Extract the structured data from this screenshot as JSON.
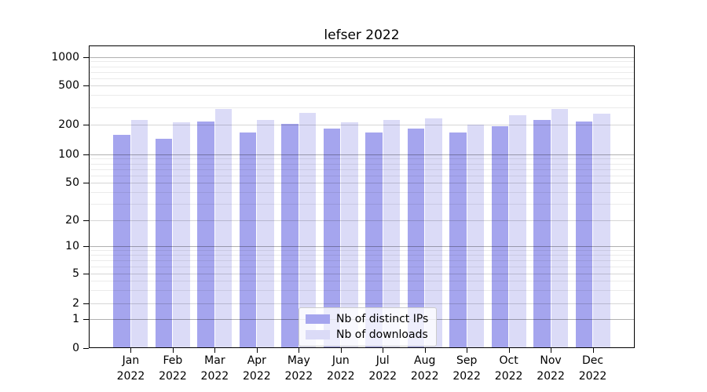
{
  "chart_data": {
    "type": "bar",
    "title": "lefser 2022",
    "months": [
      "Jan",
      "Feb",
      "Mar",
      "Apr",
      "May",
      "Jun",
      "Jul",
      "Aug",
      "Sep",
      "Oct",
      "Nov",
      "Dec"
    ],
    "year": "2022",
    "series": [
      {
        "name": "Nb of distinct IPs",
        "color": "#a5a5ee",
        "values": [
          158,
          143,
          216,
          167,
          204,
          183,
          168,
          183,
          167,
          194,
          223,
          215
        ]
      },
      {
        "name": "Nb of downloads",
        "color": "#dbdbf7",
        "values": [
          223,
          210,
          288,
          222,
          263,
          211,
          225,
          232,
          199,
          250,
          290,
          260
        ]
      }
    ],
    "yticks": [
      "1000",
      "500",
      "200",
      "100",
      "50",
      "20",
      "10",
      "5",
      "2",
      "1",
      "0"
    ],
    "ylim": [
      0,
      1300
    ],
    "yscale": "log-like (compressed below 10, 0 baseline)",
    "xlabel": "",
    "ylabel": "",
    "grid": "horizontal",
    "legend_position": "lower center",
    "colors": {
      "background": "#ffffff",
      "spine": "#000000",
      "grid_major": "#b0b0b0",
      "grid_mid": "#d6d6d6",
      "grid_minor": "#ebebeb"
    }
  }
}
